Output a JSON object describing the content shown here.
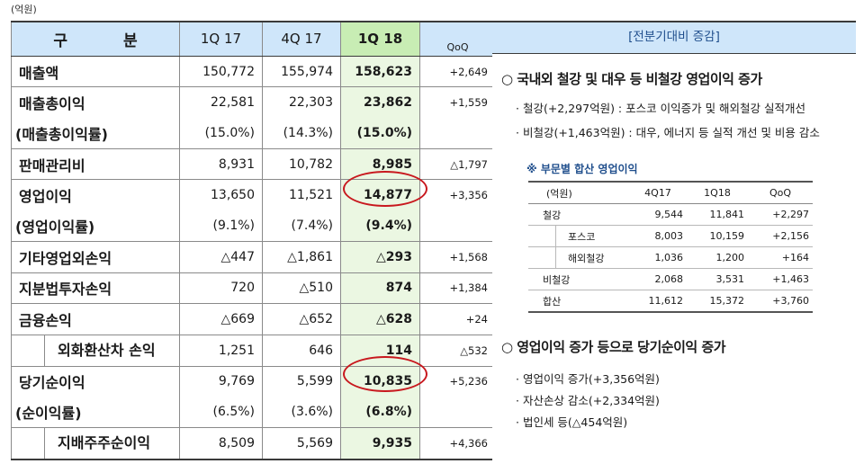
{
  "unit_label": "(억원)",
  "table": {
    "headers": [
      "구 분",
      "1Q 17",
      "4Q 17",
      "1Q 18",
      "QoQ"
    ],
    "rows": [
      [
        "매출액",
        "150,772",
        "155,974",
        "158,623",
        "+2,649"
      ],
      [
        "매출총이익",
        "22,581",
        "22,303",
        "23,862",
        "+1,559"
      ],
      [
        "(매출총이익률)",
        "(15.0%)",
        "(14.3%)",
        "(15.0%)",
        ""
      ],
      [
        "판매관리비",
        "8,931",
        "10,782",
        "8,985",
        "△1,797"
      ],
      [
        "영업이익",
        "13,650",
        "11,521",
        "14,877",
        "+3,356"
      ],
      [
        "(영업이익률)",
        "(9.1%)",
        "(7.4%)",
        "(9.4%)",
        ""
      ],
      [
        "기타영업외손익",
        "△447",
        "△1,861",
        "△293",
        "+1,568"
      ],
      [
        "지분법투자손익",
        "720",
        "△510",
        "874",
        "+1,384"
      ],
      [
        "금융손익",
        "△669",
        "△652",
        "△628",
        "+24"
      ],
      [
        "외화환산차 손익",
        "1,251",
        "646",
        "114",
        "△532"
      ],
      [
        "당기순이익",
        "9,769",
        "5,599",
        "10,835",
        "+5,236"
      ],
      [
        "(순이익률)",
        "(6.5%)",
        "(3.6%)",
        "(6.8%)",
        ""
      ],
      [
        "지배주주순이익",
        "8,509",
        "5,569",
        "9,935",
        "+4,366"
      ]
    ]
  },
  "panel": {
    "header": "[전분기대비 증감]",
    "section1": {
      "title": "○ 국내외 철강 및 대우 등 비철강 영업이익 증가",
      "bullets": [
        "· 철강(+2,297억원) : 포스코 이익증가 및 해외철강 실적개선",
        "· 비철강(+1,463억원) : 대우, 에너지 등 실적 개선 및 비용 감소"
      ]
    },
    "note": "※ 부문별 합산 영업이익",
    "subtable": {
      "headers": [
        "(억원)",
        "4Q17",
        "1Q18",
        "QoQ"
      ],
      "rows": [
        [
          "철강",
          "9,544",
          "11,841",
          "+2,297"
        ],
        [
          "포스코",
          "8,003",
          "10,159",
          "+2,156"
        ],
        [
          "해외철강",
          "1,036",
          "1,200",
          "+164"
        ],
        [
          "비철강",
          "2,068",
          "3,531",
          "+1,463"
        ],
        [
          "합산",
          "11,612",
          "15,372",
          "+3,760"
        ]
      ]
    },
    "section2": {
      "title": "○ 영업이익 증가 등으로 당기순이익 증가",
      "bullets": [
        "· 영업이익 증가(+3,356억원)",
        "· 자산손상 감소(+2,334억원)",
        "· 법인세 등(△454억원)"
      ]
    }
  },
  "colors": {
    "header_blue": "#cfe6fa",
    "highlight_green": "#c8edb4",
    "circle_red": "#c8181e"
  }
}
